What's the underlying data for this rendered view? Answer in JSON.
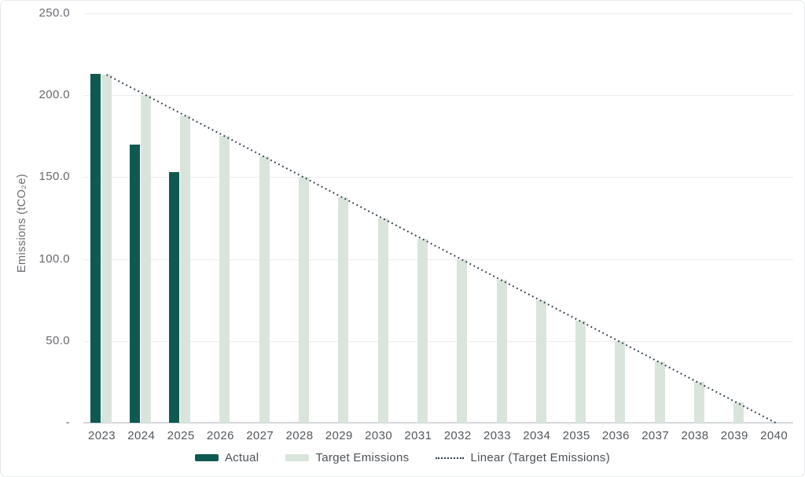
{
  "chart_data": {
    "type": "bar",
    "title": "",
    "xlabel": "",
    "ylabel": "Emissions (tCO₂e)",
    "categories": [
      "2023",
      "2024",
      "2025",
      "2026",
      "2027",
      "2028",
      "2029",
      "2030",
      "2031",
      "2032",
      "2033",
      "2034",
      "2035",
      "2036",
      "2037",
      "2038",
      "2039",
      "2040"
    ],
    "series": [
      {
        "name": "Actual",
        "type": "bar",
        "color": "#0f5a50",
        "values": [
          213,
          170,
          153,
          null,
          null,
          null,
          null,
          null,
          null,
          null,
          null,
          null,
          null,
          null,
          null,
          null,
          null,
          null
        ]
      },
      {
        "name": "Target Emissions",
        "type": "bar",
        "color": "#d9e5db",
        "values": [
          212.5,
          200,
          187.5,
          175,
          162.5,
          150,
          137.5,
          125,
          112.5,
          100,
          87.5,
          75,
          62.5,
          50,
          37.5,
          25,
          12.5,
          0
        ]
      },
      {
        "name": "Linear (Target Emissions)",
        "type": "trendline",
        "line_style": "dotted",
        "color": "#2b3949",
        "start_value": 212.5,
        "end_value": 0
      }
    ],
    "y_axis": {
      "range": [
        0,
        250
      ],
      "ticks": [
        {
          "value": 250,
          "label": "250.0"
        },
        {
          "value": 200,
          "label": "200.0"
        },
        {
          "value": 150,
          "label": "150.0"
        },
        {
          "value": 100,
          "label": "100.0"
        },
        {
          "value": 50,
          "label": "50.0"
        },
        {
          "value": 0,
          "label": "-"
        }
      ]
    },
    "grid": true,
    "legend_position": "bottom",
    "appearance": {
      "background": "#ffffff",
      "border_color": "#e5e8ea",
      "grid_color": "#ededed",
      "baseline_color": "#d6d9db",
      "y_tick_color": "#66696e",
      "x_tick_color": "#54585c",
      "y_title_color": "#696d72",
      "legend_text_color": "#4c5156"
    }
  }
}
